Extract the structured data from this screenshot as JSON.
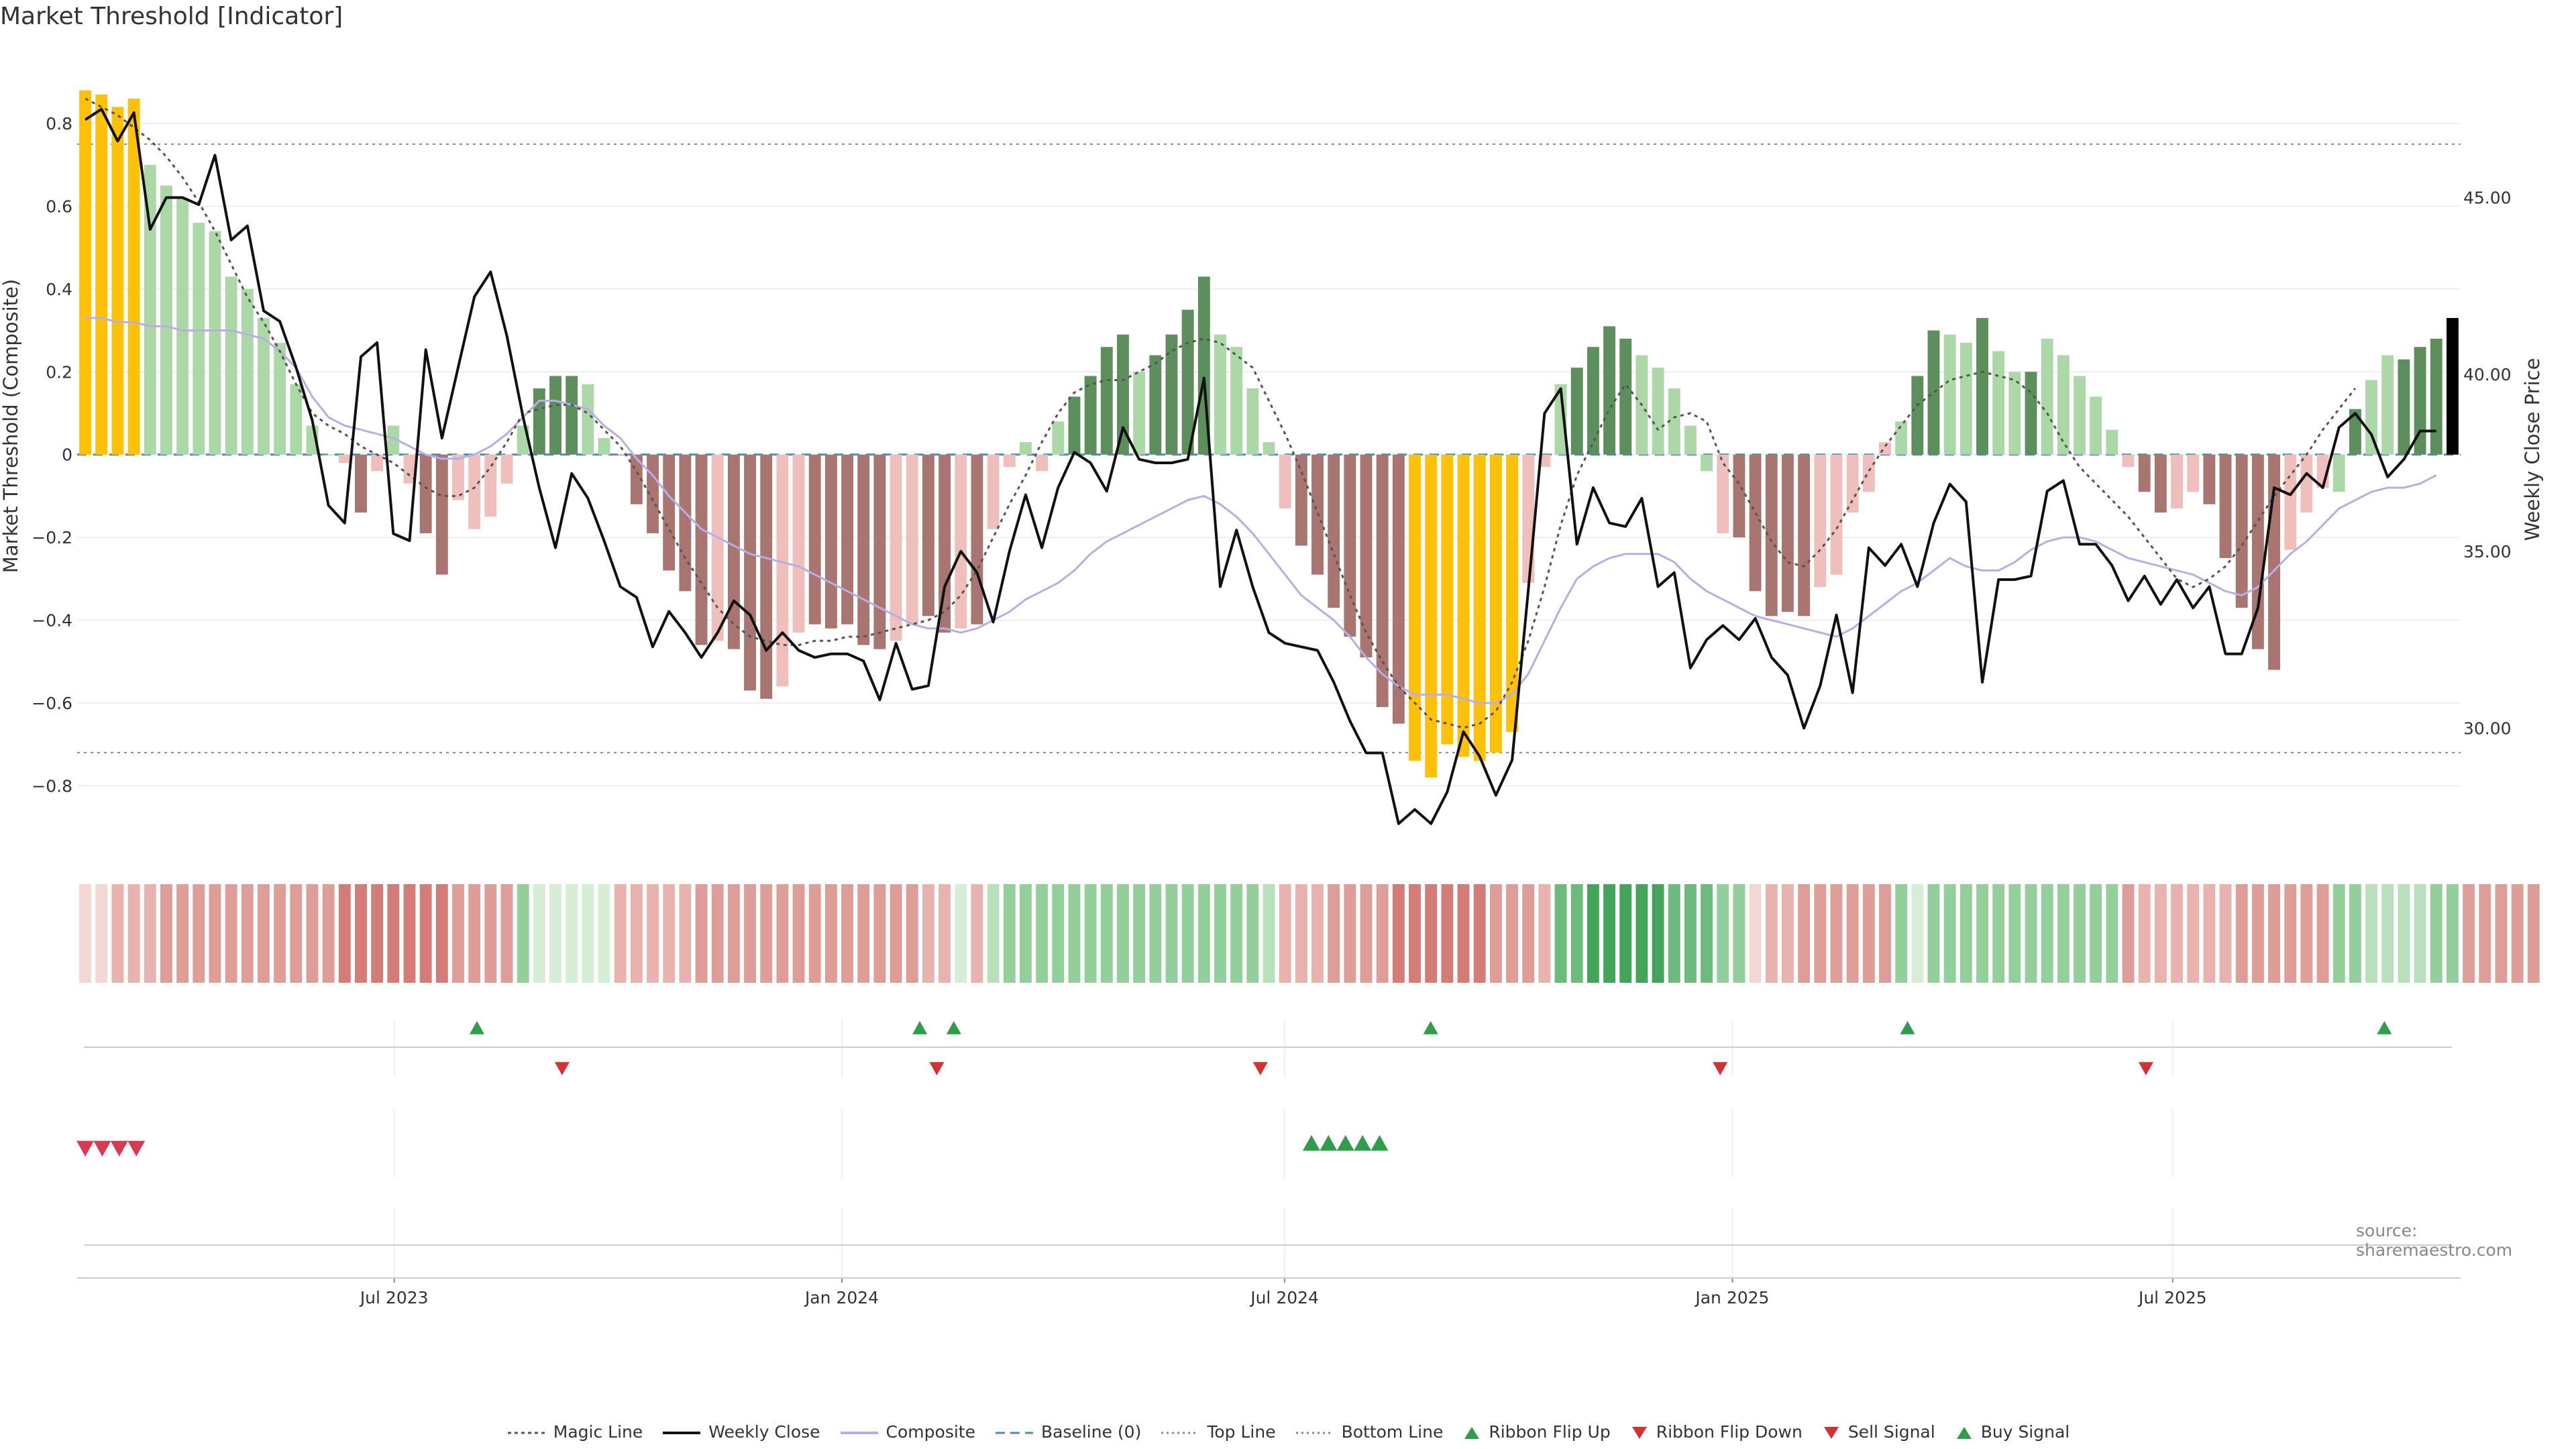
{
  "title": "Market Threshold [Indicator]",
  "source": "source: sharemaestro.com",
  "colors": {
    "bar_yellow": "#ffc107",
    "bar_dark_green": "#5c8f5c",
    "bar_light_green": "#acd8a7",
    "bar_dark_red": "#a97570",
    "bar_light_red": "#eebfbb",
    "weekly_close": "#111111",
    "composite": "#b8aee6",
    "magic_line": "#555555",
    "baseline": "#4a8fb0",
    "flip_up": "#2e9e4a",
    "flip_down": "#d63030"
  },
  "legend": [
    {
      "label": "Magic Line",
      "kind": "dotted",
      "color": "#555555"
    },
    {
      "label": "Weekly Close",
      "kind": "solid",
      "color": "#111111"
    },
    {
      "label": "Composite",
      "kind": "solid",
      "color": "#b8aee6"
    },
    {
      "label": "Baseline (0)",
      "kind": "dashed",
      "color": "#4a8fb0"
    },
    {
      "label": "Top Line",
      "kind": "dotted-light",
      "color": "#888888"
    },
    {
      "label": "Bottom Line",
      "kind": "dotted-light",
      "color": "#888888"
    },
    {
      "label": "Ribbon Flip Up",
      "kind": "tri-up",
      "color": "#2e9e4a"
    },
    {
      "label": "Ribbon Flip Down",
      "kind": "tri-down",
      "color": "#d63030"
    },
    {
      "label": "Sell Signal",
      "kind": "tri-down",
      "color": "#d63030"
    },
    {
      "label": "Buy Signal",
      "kind": "tri-up",
      "color": "#2e9e4a"
    }
  ],
  "chart_data": {
    "type": "bar",
    "x_start": "2023-02-24",
    "x_end": "2025-10-24",
    "x_ticks": [
      "Jul 2023",
      "Jan 2024",
      "Jul 2024",
      "Jan 2025",
      "Jul 2025"
    ],
    "x_tick_dates": [
      "2023-07-01",
      "2024-01-01",
      "2024-07-01",
      "2025-01-01",
      "2025-07-01"
    ],
    "ylabel_left": "Market Threshold (Composite)",
    "ylabel_right": "Weekly Close Price",
    "ylim_left": [
      -0.96,
      0.92
    ],
    "ylim_right": [
      26.5,
      48.5
    ],
    "yticks_left": [
      "0.8",
      "0.6",
      "0.4",
      "0.2",
      "0",
      "−0.2",
      "−0.4",
      "−0.6",
      "−0.8"
    ],
    "ytick_values_left": [
      0.8,
      0.6,
      0.4,
      0.2,
      0,
      -0.2,
      -0.4,
      -0.6,
      -0.8
    ],
    "yticks_right": [
      "45.00",
      "40.00",
      "35.00",
      "30.00"
    ],
    "ytick_values_right": [
      45,
      40,
      35,
      30
    ],
    "top_line": 0.75,
    "bottom_line": -0.72,
    "grid": true,
    "legend_position": "bottom-center",
    "composite_bars": {
      "values": [
        0.88,
        0.87,
        0.84,
        0.86,
        0.7,
        0.65,
        0.62,
        0.56,
        0.54,
        0.43,
        0.4,
        0.33,
        0.27,
        0.17,
        0.07,
        0.0,
        -0.02,
        -0.14,
        -0.04,
        0.07,
        -0.07,
        -0.19,
        -0.29,
        -0.11,
        -0.18,
        -0.15,
        -0.07,
        0.07,
        0.16,
        0.19,
        0.19,
        0.17,
        0.04,
        0.0,
        -0.12,
        -0.19,
        -0.28,
        -0.33,
        -0.46,
        -0.45,
        -0.47,
        -0.57,
        -0.59,
        -0.56,
        -0.43,
        -0.41,
        -0.42,
        -0.41,
        -0.46,
        -0.47,
        -0.45,
        -0.41,
        -0.39,
        -0.43,
        -0.42,
        -0.41,
        -0.18,
        -0.03,
        0.03,
        -0.04,
        0.08,
        0.14,
        0.19,
        0.26,
        0.29,
        0.2,
        0.24,
        0.29,
        0.35,
        0.43,
        0.29,
        0.26,
        0.16,
        0.03,
        -0.13,
        -0.22,
        -0.29,
        -0.37,
        -0.44,
        -0.49,
        -0.61,
        -0.65,
        -0.74,
        -0.78,
        -0.7,
        -0.73,
        -0.74,
        -0.72,
        -0.67,
        -0.31,
        -0.03,
        0.17,
        0.21,
        0.26,
        0.31,
        0.28,
        0.24,
        0.21,
        0.16,
        0.07,
        -0.04,
        -0.19,
        -0.2,
        -0.33,
        -0.39,
        -0.38,
        -0.39,
        -0.32,
        -0.29,
        -0.14,
        -0.09,
        0.03,
        0.08,
        0.19,
        0.3,
        0.29,
        0.27,
        0.33,
        0.25,
        0.2,
        0.2,
        0.28,
        0.24,
        0.19,
        0.14,
        0.06,
        -0.03,
        -0.09,
        -0.14,
        -0.13,
        -0.09,
        -0.12,
        -0.25,
        -0.37,
        -0.47,
        -0.52,
        -0.23,
        -0.14,
        -0.08,
        -0.09,
        0.11,
        0.18,
        0.24,
        0.23,
        0.26,
        0.28,
        0.33
      ],
      "colors": [
        "Y",
        "Y",
        "Y",
        "Y",
        "LG",
        "LG",
        "LG",
        "LG",
        "LG",
        "LG",
        "LG",
        "LG",
        "LG",
        "LG",
        "LG",
        "LG",
        "LR",
        "DR",
        "LR",
        "LG",
        "LR",
        "DR",
        "DR",
        "LR",
        "LR",
        "LR",
        "LR",
        "LG",
        "DG",
        "DG",
        "DG",
        "LG",
        "LG",
        "DR",
        "DR",
        "DR",
        "DR",
        "DR",
        "DR",
        "LR",
        "DR",
        "DR",
        "DR",
        "LR",
        "LR",
        "DR",
        "DR",
        "DR",
        "DR",
        "DR",
        "LR",
        "LR",
        "DR",
        "DR",
        "LR",
        "DR",
        "LR",
        "LR",
        "LG",
        "LR",
        "LG",
        "DG",
        "DG",
        "DG",
        "DG",
        "LG",
        "DG",
        "DG",
        "DG",
        "DG",
        "LG",
        "LG",
        "LG",
        "LG",
        "LR",
        "DR",
        "DR",
        "DR",
        "DR",
        "DR",
        "DR",
        "DR",
        "Y",
        "Y",
        "Y",
        "Y",
        "Y",
        "Y",
        "Y",
        "LR",
        "LR",
        "LG",
        "DG",
        "DG",
        "DG",
        "DG",
        "LG",
        "LG",
        "LG",
        "LG",
        "LG",
        "LR",
        "DR",
        "DR",
        "DR",
        "DR",
        "DR",
        "LR",
        "LR",
        "LR",
        "LR",
        "LR",
        "LG",
        "DG",
        "DG",
        "LG",
        "LG",
        "DG",
        "LG",
        "LG",
        "DG",
        "LG",
        "LG",
        "LG",
        "LG",
        "LG",
        "LR",
        "DR",
        "DR",
        "LR",
        "LR",
        "DR",
        "DR",
        "DR",
        "DR",
        "DR",
        "LR",
        "LR",
        "LR",
        "LG",
        "DG",
        "LG",
        "LG",
        "DG",
        "DG",
        "DG"
      ]
    },
    "series": [
      {
        "name": "Weekly Close",
        "axis": "right",
        "values": [
          47.2,
          47.5,
          46.6,
          47.4,
          44.1,
          45.0,
          45.0,
          44.8,
          46.2,
          43.8,
          44.2,
          41.8,
          41.5,
          40.2,
          38.7,
          36.3,
          35.8,
          40.5,
          40.9,
          35.5,
          35.3,
          40.7,
          38.2,
          40.2,
          42.2,
          42.9,
          41.1,
          38.8,
          36.8,
          35.1,
          37.2,
          36.5,
          35.3,
          34.0,
          33.7,
          32.3,
          33.3,
          32.7,
          32.0,
          32.7,
          33.6,
          33.2,
          32.2,
          32.7,
          32.2,
          32.0,
          32.1,
          32.1,
          31.9,
          30.8,
          32.4,
          31.1,
          31.2,
          34.0,
          35.0,
          34.4,
          33.0,
          35.0,
          36.6,
          35.1,
          36.8,
          37.8,
          37.5,
          36.7,
          38.5,
          37.6,
          37.5,
          37.5,
          37.6,
          39.9,
          34.0,
          35.6,
          34.0,
          32.7,
          32.4,
          32.3,
          32.2,
          31.3,
          30.2,
          29.3,
          29.3,
          27.3,
          27.7,
          27.3,
          28.2,
          29.9,
          29.2,
          28.1,
          29.1,
          33.9,
          38.9,
          39.6,
          35.2,
          36.8,
          35.8,
          35.7,
          36.5,
          34.0,
          34.4,
          31.7,
          32.5,
          32.9,
          32.5,
          33.1,
          32.0,
          31.5,
          30.0,
          31.2,
          33.2,
          31.0,
          35.1,
          34.6,
          35.2,
          34.0,
          35.8,
          36.9,
          36.4,
          31.3,
          34.2,
          34.2,
          34.3,
          36.7,
          37.0,
          35.2,
          35.2,
          34.6,
          33.6,
          34.3,
          33.5,
          34.2,
          33.4,
          34.0,
          32.1,
          32.1,
          33.4,
          36.8,
          36.6,
          37.2,
          36.8,
          38.5,
          38.9,
          38.3,
          37.1,
          37.6,
          38.4,
          38.4
        ]
      },
      {
        "name": "Composite",
        "axis": "left",
        "values": [
          0.33,
          0.33,
          0.32,
          0.32,
          0.31,
          0.31,
          0.3,
          0.3,
          0.3,
          0.3,
          0.29,
          0.28,
          0.25,
          0.21,
          0.14,
          0.09,
          0.07,
          0.06,
          0.05,
          0.04,
          0.02,
          0.0,
          -0.01,
          -0.01,
          0.0,
          0.02,
          0.05,
          0.09,
          0.13,
          0.13,
          0.12,
          0.11,
          0.07,
          0.04,
          -0.01,
          -0.05,
          -0.1,
          -0.14,
          -0.18,
          -0.2,
          -0.22,
          -0.24,
          -0.25,
          -0.26,
          -0.27,
          -0.29,
          -0.31,
          -0.33,
          -0.35,
          -0.37,
          -0.39,
          -0.41,
          -0.42,
          -0.42,
          -0.43,
          -0.42,
          -0.4,
          -0.38,
          -0.35,
          -0.33,
          -0.31,
          -0.28,
          -0.24,
          -0.21,
          -0.19,
          -0.17,
          -0.15,
          -0.13,
          -0.11,
          -0.1,
          -0.12,
          -0.15,
          -0.19,
          -0.24,
          -0.29,
          -0.34,
          -0.37,
          -0.4,
          -0.44,
          -0.49,
          -0.53,
          -0.56,
          -0.58,
          -0.58,
          -0.58,
          -0.59,
          -0.6,
          -0.6,
          -0.58,
          -0.53,
          -0.45,
          -0.37,
          -0.3,
          -0.27,
          -0.25,
          -0.24,
          -0.24,
          -0.24,
          -0.26,
          -0.3,
          -0.33,
          -0.35,
          -0.37,
          -0.39,
          -0.4,
          -0.41,
          -0.42,
          -0.43,
          -0.44,
          -0.42,
          -0.39,
          -0.36,
          -0.33,
          -0.31,
          -0.28,
          -0.25,
          -0.27,
          -0.28,
          -0.28,
          -0.26,
          -0.23,
          -0.21,
          -0.2,
          -0.2,
          -0.21,
          -0.23,
          -0.25,
          -0.26,
          -0.27,
          -0.28,
          -0.29,
          -0.31,
          -0.33,
          -0.34,
          -0.32,
          -0.28,
          -0.24,
          -0.21,
          -0.17,
          -0.13,
          -0.11,
          -0.09,
          -0.08,
          -0.08,
          -0.07,
          -0.05
        ]
      },
      {
        "name": "Magic Line",
        "axis": "left",
        "values": [
          0.86,
          0.84,
          0.82,
          0.79,
          0.76,
          0.72,
          0.67,
          0.61,
          0.54,
          0.46,
          0.38,
          0.32,
          0.25,
          0.17,
          0.1,
          0.07,
          0.05,
          0.02,
          0.0,
          -0.02,
          -0.05,
          -0.08,
          -0.1,
          -0.1,
          -0.08,
          -0.03,
          0.03,
          0.1,
          0.11,
          0.12,
          0.12,
          0.1,
          0.06,
          0.02,
          -0.04,
          -0.11,
          -0.18,
          -0.25,
          -0.31,
          -0.37,
          -0.41,
          -0.44,
          -0.45,
          -0.46,
          -0.46,
          -0.45,
          -0.45,
          -0.44,
          -0.44,
          -0.43,
          -0.42,
          -0.41,
          -0.4,
          -0.38,
          -0.34,
          -0.28,
          -0.2,
          -0.12,
          -0.05,
          0.03,
          0.1,
          0.15,
          0.17,
          0.18,
          0.18,
          0.2,
          0.22,
          0.25,
          0.27,
          0.28,
          0.27,
          0.24,
          0.21,
          0.13,
          0.05,
          -0.04,
          -0.14,
          -0.24,
          -0.34,
          -0.43,
          -0.5,
          -0.56,
          -0.6,
          -0.64,
          -0.65,
          -0.66,
          -0.65,
          -0.62,
          -0.55,
          -0.45,
          -0.32,
          -0.17,
          -0.05,
          0.03,
          0.11,
          0.17,
          0.12,
          0.06,
          0.09,
          0.1,
          0.08,
          -0.02,
          -0.07,
          -0.14,
          -0.21,
          -0.26,
          -0.27,
          -0.23,
          -0.18,
          -0.11,
          -0.04,
          0.02,
          0.07,
          0.12,
          0.15,
          0.18,
          0.19,
          0.2,
          0.19,
          0.18,
          0.15,
          0.1,
          0.03,
          -0.03,
          -0.07,
          -0.11,
          -0.15,
          -0.2,
          -0.25,
          -0.3,
          -0.32,
          -0.3,
          -0.27,
          -0.22,
          -0.16,
          -0.1,
          -0.05,
          0.0,
          0.06,
          0.11,
          0.16
        ]
      }
    ],
    "ribbon": {
      "intensity": [
        1,
        1,
        2,
        2,
        2,
        3,
        3,
        3,
        3,
        3,
        3,
        3,
        3,
        3,
        3,
        3,
        4,
        4,
        4,
        4,
        4,
        4,
        4,
        3,
        3,
        3,
        3,
        3,
        1,
        1,
        1,
        1,
        1,
        2,
        2,
        2,
        2,
        2,
        3,
        3,
        3,
        3,
        3,
        3,
        3,
        3,
        3,
        3,
        3,
        3,
        3,
        3,
        2,
        2,
        1,
        2,
        2,
        3,
        3,
        3,
        3,
        3,
        3,
        3,
        3,
        3,
        3,
        3,
        3,
        3,
        3,
        3,
        3,
        2,
        2,
        2,
        2,
        3,
        3,
        3,
        3,
        4,
        4,
        4,
        4,
        4,
        4,
        3,
        3,
        3,
        2,
        4,
        4,
        5,
        5,
        5,
        5,
        5,
        4,
        4,
        4,
        3,
        3,
        1,
        2,
        2,
        3,
        3,
        3,
        3,
        3,
        3,
        3,
        1,
        3,
        3,
        3,
        3,
        3,
        3,
        3,
        3,
        3,
        3,
        3,
        3,
        3,
        2,
        2,
        2,
        2,
        2,
        2,
        3,
        3,
        3,
        3,
        3,
        3,
        3,
        3,
        2,
        2,
        2,
        2,
        3,
        3,
        3,
        3,
        3,
        3,
        3
      ],
      "side": [
        "R",
        "R",
        "R",
        "R",
        "R",
        "R",
        "R",
        "R",
        "R",
        "R",
        "R",
        "R",
        "R",
        "R",
        "R",
        "R",
        "R",
        "R",
        "R",
        "R",
        "R",
        "R",
        "R",
        "R",
        "R",
        "R",
        "R",
        "G",
        "G",
        "G",
        "G",
        "G",
        "G",
        "R",
        "R",
        "R",
        "R",
        "R",
        "R",
        "R",
        "R",
        "R",
        "R",
        "R",
        "R",
        "R",
        "R",
        "R",
        "R",
        "R",
        "R",
        "R",
        "R",
        "R",
        "G",
        "R",
        "G",
        "G",
        "G",
        "G",
        "G",
        "G",
        "G",
        "G",
        "G",
        "G",
        "G",
        "G",
        "G",
        "G",
        "G",
        "G",
        "G",
        "G",
        "R",
        "R",
        "R",
        "R",
        "R",
        "R",
        "R",
        "R",
        "R",
        "R",
        "R",
        "R",
        "R",
        "R",
        "R",
        "R",
        "R",
        "G",
        "G",
        "G",
        "G",
        "G",
        "G",
        "G",
        "G",
        "G",
        "G",
        "G",
        "G",
        "R",
        "R",
        "R",
        "R",
        "R",
        "R",
        "R",
        "R",
        "R",
        "G",
        "G",
        "G",
        "G",
        "G",
        "G",
        "G",
        "G",
        "G",
        "G",
        "G",
        "G",
        "G",
        "G",
        "R",
        "R",
        "R",
        "R",
        "R",
        "R",
        "R",
        "R",
        "R",
        "R",
        "R",
        "R",
        "R",
        "G",
        "G",
        "G",
        "G",
        "G",
        "G",
        "G",
        "G"
      ]
    },
    "ribbon_flip_up_dates": [
      "2023-08-04",
      "2024-02-02",
      "2024-02-16",
      "2024-08-30",
      "2025-03-14",
      "2025-09-26"
    ],
    "ribbon_flip_down_dates": [
      "2023-09-08",
      "2024-02-09",
      "2024-06-21",
      "2024-12-27",
      "2025-06-20"
    ],
    "sell_signal_dates": [
      "2023-02-24",
      "2023-03-03",
      "2023-03-10",
      "2023-03-17"
    ],
    "buy_signal_dates": [
      "2024-07-12",
      "2024-07-19",
      "2024-07-26",
      "2024-08-02",
      "2024-08-09"
    ]
  }
}
